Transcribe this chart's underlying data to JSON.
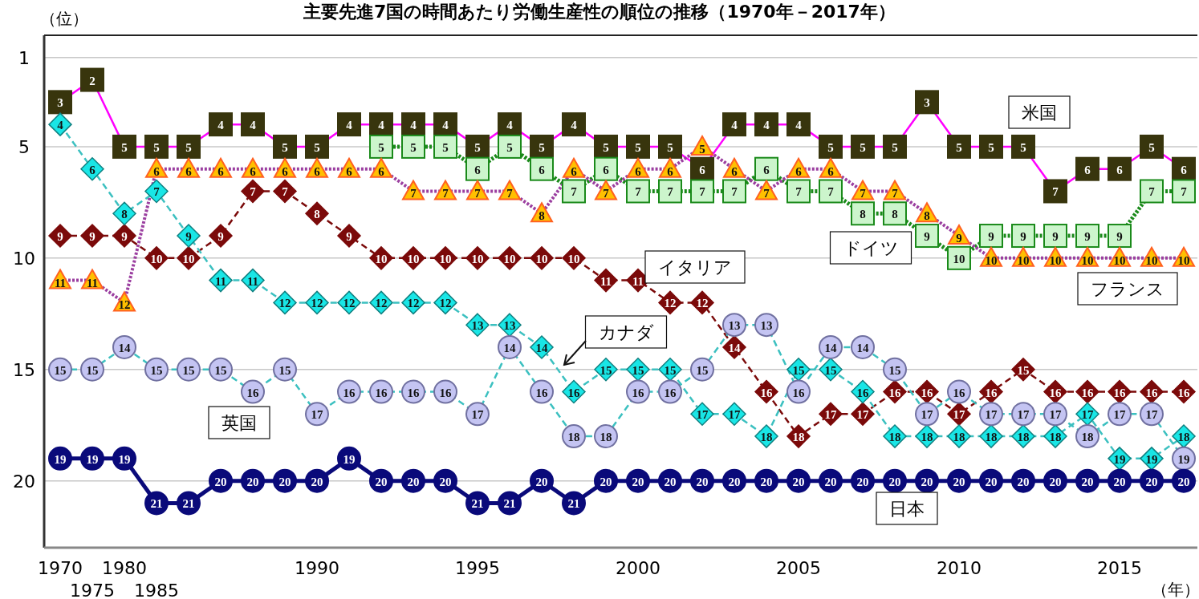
{
  "chart_data": {
    "type": "line",
    "title": "主要先進7国の時間あたり労働生産性の順位の推移（1970年－2017年）",
    "ylabel": "（位）",
    "xlabel": "（年）",
    "categories": [
      "1970",
      "1975",
      "1980",
      "1985",
      null,
      null,
      null,
      null,
      "1990",
      null,
      null,
      null,
      null,
      "1995",
      null,
      null,
      null,
      null,
      "2000",
      null,
      null,
      null,
      null,
      "2005",
      null,
      null,
      null,
      null,
      "2010",
      null,
      null,
      null,
      null,
      "2015",
      null,
      null
    ],
    "ylim": [
      23,
      0
    ],
    "yticks": [
      1,
      5,
      10,
      15,
      20
    ],
    "grid": "y",
    "legend": false,
    "data_labels": true,
    "series": [
      {
        "name": "米国",
        "color": "#38350d",
        "marker": "square",
        "line_style": "solid",
        "values": [
          3,
          2,
          5,
          5,
          5,
          4,
          4,
          5,
          5,
          4,
          4,
          4,
          4,
          5,
          4,
          5,
          4,
          5,
          5,
          5,
          6,
          4,
          4,
          4,
          5,
          5,
          5,
          3,
          5,
          5,
          5,
          7,
          6,
          6,
          5,
          6
        ]
      },
      {
        "name": "ドイツ",
        "color": "#ccf5cc",
        "marker": "square",
        "line_style": "dotted",
        "values": [
          null,
          null,
          null,
          null,
          null,
          null,
          null,
          null,
          null,
          null,
          5,
          5,
          5,
          6,
          5,
          6,
          7,
          6,
          7,
          7,
          7,
          7,
          6,
          7,
          7,
          8,
          8,
          9,
          10,
          9,
          9,
          9,
          9,
          9,
          7,
          7
        ]
      },
      {
        "name": "フランス",
        "color": "#ffc000",
        "marker": "triangle",
        "line_style": "dotted",
        "values": [
          11,
          11,
          12,
          6,
          6,
          6,
          6,
          6,
          6,
          6,
          6,
          7,
          7,
          7,
          7,
          8,
          6,
          7,
          6,
          6,
          5,
          6,
          7,
          6,
          6,
          7,
          7,
          8,
          9,
          10,
          10,
          10,
          10,
          10,
          10,
          10
        ]
      },
      {
        "name": "イタリア",
        "color": "#7b0a0a",
        "marker": "diamond",
        "line_style": "dashed",
        "values": [
          9,
          9,
          9,
          10,
          10,
          9,
          7,
          7,
          8,
          9,
          10,
          10,
          10,
          10,
          10,
          10,
          10,
          11,
          11,
          12,
          12,
          14,
          16,
          18,
          17,
          17,
          16,
          16,
          17,
          16,
          15,
          16,
          16,
          16,
          16,
          16
        ]
      },
      {
        "name": "カナダ",
        "color": "#19e6e6",
        "marker": "diamond",
        "line_style": "dashed",
        "values": [
          4,
          6,
          8,
          7,
          9,
          11,
          11,
          12,
          12,
          12,
          12,
          12,
          12,
          13,
          13,
          14,
          16,
          15,
          15,
          15,
          17,
          17,
          18,
          15,
          15,
          16,
          18,
          18,
          18,
          18,
          18,
          18,
          17,
          19,
          19,
          18
        ]
      },
      {
        "name": "英国",
        "color": "#c4c4f2",
        "marker": "circle",
        "line_style": "dashed",
        "values": [
          15,
          15,
          14,
          15,
          15,
          15,
          16,
          15,
          17,
          16,
          16,
          16,
          16,
          17,
          14,
          16,
          18,
          18,
          16,
          16,
          15,
          13,
          13,
          16,
          14,
          14,
          15,
          17,
          16,
          17,
          17,
          17,
          18,
          17,
          17,
          19
        ]
      },
      {
        "name": "日本",
        "color": "#0a0a7a",
        "marker": "circle",
        "line_style": "solid",
        "values": [
          19,
          19,
          19,
          21,
          21,
          20,
          20,
          20,
          20,
          19,
          20,
          20,
          20,
          21,
          21,
          20,
          21,
          20,
          20,
          20,
          20,
          20,
          20,
          20,
          20,
          20,
          20,
          20,
          20,
          20,
          20,
          20,
          20,
          20,
          20,
          20
        ]
      }
    ]
  }
}
